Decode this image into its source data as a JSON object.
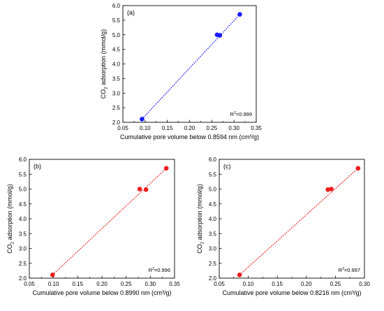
{
  "chart_data": [
    {
      "type": "scatter",
      "panel": "(a)",
      "xlabel": "Cumulative pore volume below 0.8594 nm (cm³/g)",
      "ylabel_main": "CO",
      "ylabel_sub": "2",
      "ylabel_rest": " adsorption (mmol/g)",
      "xlim": [
        0.05,
        0.35
      ],
      "ylim": [
        2.0,
        6.0
      ],
      "xticks": [
        "0.05",
        "0.10",
        "0.15",
        "0.20",
        "0.25",
        "0.30",
        "0.35"
      ],
      "yticks": [
        "2.0",
        "2.5",
        "3.0",
        "3.5",
        "4.0",
        "4.5",
        "5.0",
        "5.5",
        "6.0"
      ],
      "x": [
        0.093,
        0.262,
        0.268,
        0.313
      ],
      "y": [
        2.11,
        5.0,
        4.98,
        5.7
      ],
      "fit_x": [
        0.093,
        0.313
      ],
      "fit_y": [
        2.11,
        5.7
      ],
      "r2_prefix": "R",
      "r2_sup": "2",
      "r2_value": "=0.999",
      "color": "#1a1aff"
    },
    {
      "type": "scatter",
      "panel": "(b)",
      "xlabel": "Cumulative pore volume below 0.8990 nm (cm³/g)",
      "ylabel_main": "CO",
      "ylabel_sub": "2",
      "ylabel_rest": " adsorption (mmol/g)",
      "xlim": [
        0.05,
        0.35
      ],
      "ylim": [
        2.0,
        6.0
      ],
      "xticks": [
        "0.05",
        "0.10",
        "0.15",
        "0.20",
        "0.25",
        "0.30",
        "0.35"
      ],
      "yticks": [
        "2.0",
        "2.5",
        "3.0",
        "3.5",
        "4.0",
        "4.5",
        "5.0",
        "5.5",
        "6.0"
      ],
      "x": [
        0.098,
        0.278,
        0.291,
        0.333
      ],
      "y": [
        2.11,
        5.0,
        4.98,
        5.7
      ],
      "fit_x": [
        0.098,
        0.333
      ],
      "fit_y": [
        2.11,
        5.7
      ],
      "r2_prefix": "R",
      "r2_sup": "2",
      "r2_value": "=0.996",
      "color": "#ee1c1c"
    },
    {
      "type": "scatter",
      "panel": "(c)",
      "xlabel": "Cumulative pore volume below 0.8216 nm (cm³/g)",
      "ylabel_main": "CO",
      "ylabel_sub": "2",
      "ylabel_rest": " adsorption (mmol/g)",
      "xlim": [
        0.05,
        0.3
      ],
      "ylim": [
        2.0,
        6.0
      ],
      "xticks": [
        "0.05",
        "0.10",
        "0.15",
        "0.20",
        "0.25",
        "0.30"
      ],
      "yticks": [
        "2.0",
        "2.5",
        "3.0",
        "3.5",
        "4.0",
        "4.5",
        "5.0",
        "5.5",
        "6.0"
      ],
      "x": [
        0.085,
        0.237,
        0.243,
        0.289
      ],
      "y": [
        2.11,
        4.98,
        5.0,
        5.7
      ],
      "fit_x": [
        0.085,
        0.289
      ],
      "fit_y": [
        2.11,
        5.7
      ],
      "r2_prefix": "R",
      "r2_sup": "2",
      "r2_value": "=0.997",
      "color": "#ee1c1c"
    }
  ]
}
